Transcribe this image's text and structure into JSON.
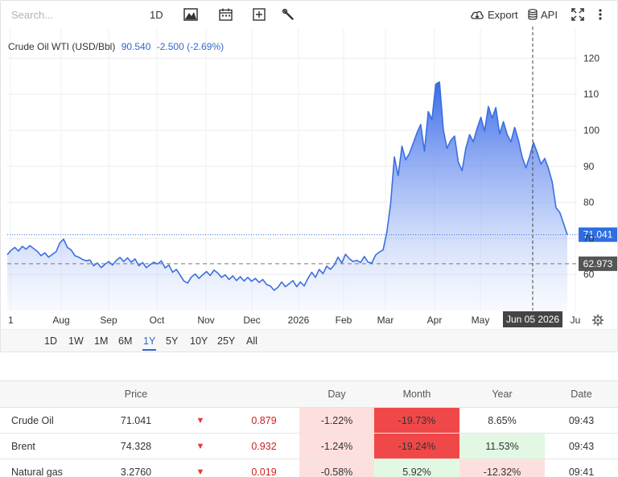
{
  "toolbar": {
    "search_placeholder": "Search...",
    "interval_label": "1D",
    "export_label": "Export",
    "api_label": "API"
  },
  "chart_header": {
    "name": "Crude Oil WTI (USD/Bbl)",
    "price": "90.540",
    "change": "-2.500 (-2.69%)"
  },
  "range_buttons": [
    "1D",
    "1W",
    "1M",
    "6M",
    "1Y",
    "5Y",
    "10Y",
    "25Y",
    "All"
  ],
  "active_range": "1Y",
  "colors": {
    "line": "#3b6fe0",
    "accent": "#3366cc",
    "last_price_tag": "#2f6ee0",
    "reference_tag": "#555555",
    "crosshair_tag": "#444444",
    "down_light": "#fde0de",
    "down_dark": "#f04848",
    "up_light": "#e3f8e3"
  },
  "chart_data": {
    "type": "area",
    "ylim": [
      50,
      127
    ],
    "y_ticks": [
      "60",
      "70",
      "80",
      "90",
      "100",
      "110",
      "120"
    ],
    "x_labels": [
      "1",
      "Aug",
      "Sep",
      "Oct",
      "Nov",
      "Dec",
      "2026",
      "Feb",
      "Mar",
      "Apr",
      "May",
      "Jun 05 2026",
      "Ju"
    ],
    "last_price_label": "71.041",
    "reference_label": "62.973",
    "series": [
      {
        "values": [
          65.5,
          66.7,
          67.5,
          66.5,
          67.8,
          67.0,
          68.0,
          67.2,
          66.4,
          65.2,
          66.0,
          64.8,
          65.6,
          66.3,
          68.8,
          69.8,
          67.5,
          66.8,
          65.2,
          64.8,
          64.2,
          63.8,
          64.0,
          62.4,
          63.2,
          61.9,
          62.8,
          63.6,
          62.6,
          63.9,
          64.7,
          63.6,
          64.6,
          63.4,
          64.3,
          62.4,
          63.3,
          61.9,
          62.7,
          63.4,
          62.9,
          63.8,
          61.8,
          62.6,
          60.6,
          61.4,
          59.8,
          58.2,
          57.6,
          59.3,
          60.1,
          58.9,
          59.9,
          60.8,
          59.7,
          61.2,
          60.4,
          59.2,
          59.9,
          58.6,
          59.6,
          58.3,
          59.4,
          58.2,
          59.2,
          58.1,
          58.9,
          57.8,
          58.6,
          57.2,
          56.8,
          55.6,
          56.4,
          57.9,
          56.6,
          57.4,
          58.3,
          56.6,
          57.9,
          56.8,
          58.9,
          60.6,
          59.2,
          61.4,
          60.2,
          62.3,
          61.4,
          62.6,
          64.8,
          63.2,
          65.6,
          64.4,
          63.6,
          63.9,
          63.3,
          65.0,
          63.4,
          63.2,
          65.4,
          66.2,
          66.8,
          71.8,
          79.8,
          92.6,
          87.4,
          95.6,
          91.8,
          93.6,
          96.4,
          99.3,
          101.6,
          94.2,
          105.2,
          103.0,
          112.8,
          113.4,
          100.2,
          95.0,
          97.2,
          98.4,
          91.2,
          88.8,
          95.0,
          98.8,
          96.8,
          100.5,
          103.6,
          99.8,
          106.6,
          103.4,
          106.3,
          99.0,
          102.4,
          98.8,
          96.8,
          100.8,
          97.2,
          92.6,
          89.6,
          92.8,
          96.6,
          93.8,
          90.6,
          92.2,
          89.4,
          85.6,
          78.5,
          77.2,
          74.2,
          71.0
        ]
      }
    ]
  },
  "table": {
    "headers": [
      "",
      "Price",
      "",
      "",
      "Day",
      "Month",
      "Year",
      "Date"
    ],
    "rows": [
      {
        "name": "Crude Oil",
        "price": "71.041",
        "arrow": "▼",
        "change": "0.879",
        "day": "-1.22%",
        "month": "-19.73%",
        "year": "8.65%",
        "date": "09:43",
        "day_bg": "down_light",
        "month_bg": "down_dark",
        "year_bg": "none"
      },
      {
        "name": "Brent",
        "price": "74.328",
        "arrow": "▼",
        "change": "0.932",
        "day": "-1.24%",
        "month": "-19.24%",
        "year": "11.53%",
        "date": "09:43",
        "day_bg": "down_light",
        "month_bg": "down_dark",
        "year_bg": "up_light"
      },
      {
        "name": "Natural gas",
        "price": "3.2760",
        "arrow": "▼",
        "change": "0.019",
        "day": "-0.58%",
        "month": "5.92%",
        "year": "-12.32%",
        "date": "09:41",
        "day_bg": "down_light",
        "month_bg": "up_light",
        "year_bg": "down_light"
      }
    ]
  }
}
